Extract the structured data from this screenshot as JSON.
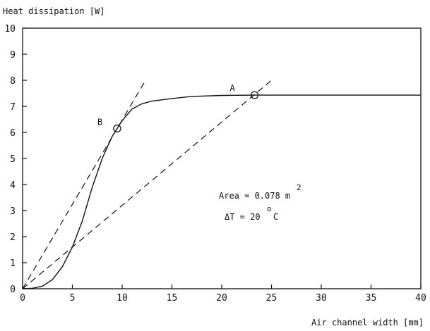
{
  "chart_data": {
    "type": "line",
    "ylabel": "Heat dissipation [W]",
    "xlabel": "Air channel width [mm]",
    "xlim": [
      0,
      40
    ],
    "ylim": [
      0,
      10
    ],
    "x_ticks": [
      "0",
      "5",
      "10",
      "15",
      "20",
      "25",
      "30",
      "35",
      "40"
    ],
    "y_ticks": [
      "0",
      "1",
      "2",
      "3",
      "4",
      "5",
      "6",
      "7",
      "8",
      "9",
      "10"
    ],
    "grid": false,
    "series": [
      {
        "style": "solid",
        "x": [
          0,
          1,
          2,
          3,
          4,
          5,
          6,
          7,
          8,
          9,
          9.5,
          10,
          11,
          12,
          13,
          15,
          17,
          20,
          23.3,
          25,
          30,
          35,
          40
        ],
        "y": [
          0,
          0.02,
          0.1,
          0.35,
          0.85,
          1.6,
          2.6,
          3.9,
          5.0,
          5.85,
          6.15,
          6.45,
          6.9,
          7.1,
          7.2,
          7.3,
          7.38,
          7.42,
          7.43,
          7.43,
          7.43,
          7.43,
          7.43
        ]
      },
      {
        "style": "dashed",
        "x": [
          0,
          12.2
        ],
        "y": [
          0,
          7.9
        ]
      },
      {
        "style": "dashed",
        "x": [
          0,
          25
        ],
        "y": [
          0,
          8.0
        ]
      }
    ],
    "points": [
      {
        "label": "A",
        "x": 23.3,
        "y": 7.43
      },
      {
        "label": "B",
        "x": 9.5,
        "y": 6.15
      }
    ],
    "annotations": {
      "area_text": "Area = 0.078 m",
      "area_sup": "2",
      "dt_text": "ΔT = 20",
      "dt_sup": "o",
      "dt_unit": "C"
    }
  }
}
